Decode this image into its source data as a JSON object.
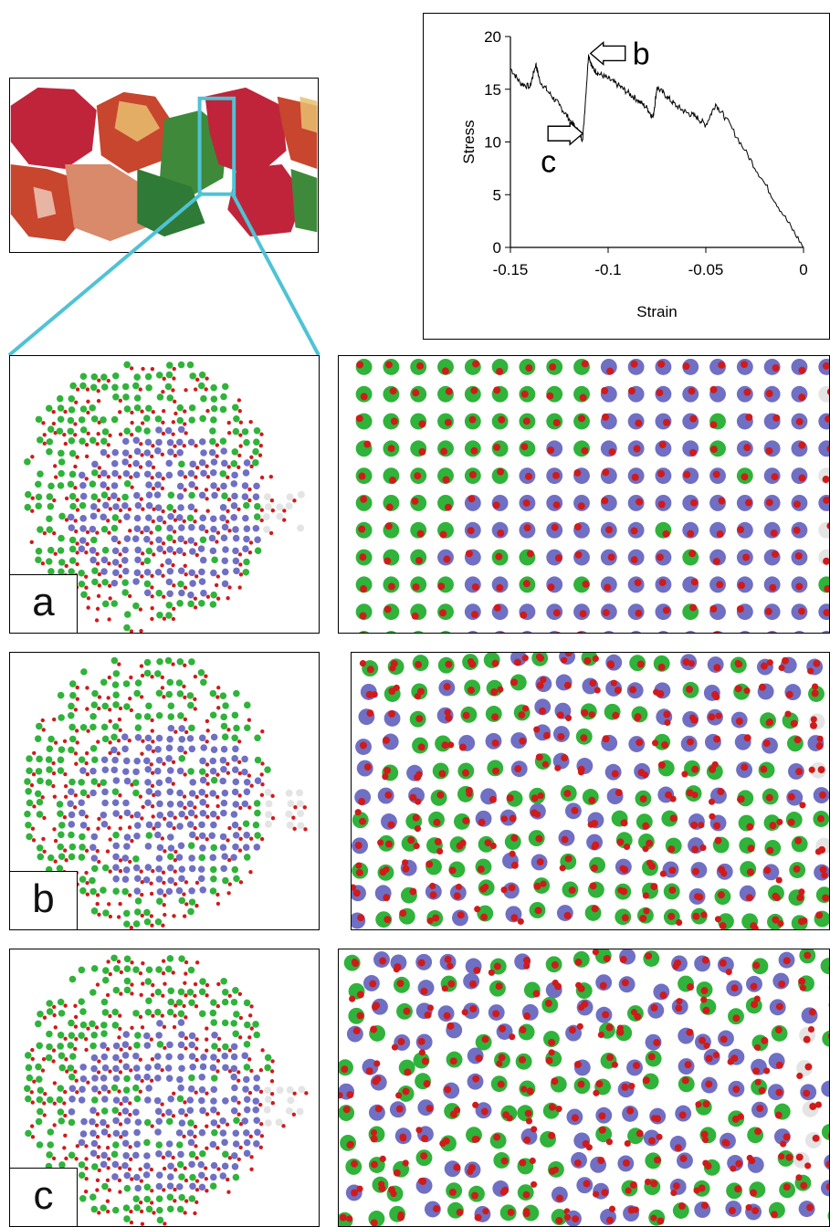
{
  "colors": {
    "green_atom": "#2fb33a",
    "blue_atom": "#6f6fc4",
    "red_atom": "#d11a1a",
    "white_atom": "#e4e4e4",
    "highlight": "#4ec3d6",
    "surface_red": "#c0243a",
    "surface_gold": "#e8c070"
  },
  "panels": {
    "a": {
      "label": "a"
    },
    "b": {
      "label": "b"
    },
    "c": {
      "label": "c"
    }
  },
  "chart_data": {
    "type": "line",
    "xlabel": "Strain",
    "ylabel": "Stress",
    "xlim": [
      -0.15,
      0
    ],
    "ylim": [
      0,
      20
    ],
    "xticks": [
      "-0.15",
      "-0.1",
      "-0.05",
      "0"
    ],
    "yticks": [
      "0",
      "5",
      "10",
      "15",
      "20"
    ],
    "series": [
      {
        "x": [
          -0.15,
          -0.145,
          -0.14,
          -0.137,
          -0.135,
          -0.13,
          -0.125,
          -0.12,
          -0.115,
          -0.113,
          -0.11,
          -0.108,
          -0.105,
          -0.1,
          -0.095,
          -0.09,
          -0.085,
          -0.08,
          -0.077,
          -0.075,
          -0.07,
          -0.065,
          -0.06,
          -0.055,
          -0.05,
          -0.045,
          -0.04,
          -0.03,
          -0.02,
          -0.01,
          0
        ],
        "y": [
          17,
          15.6,
          15.2,
          17.4,
          15.8,
          14.6,
          13.5,
          12.2,
          10.9,
          10.2,
          18.3,
          17.0,
          16.5,
          16.0,
          15.4,
          14.7,
          14.0,
          13.2,
          12.3,
          15.2,
          14.3,
          13.4,
          12.8,
          12.4,
          11.6,
          13.6,
          12.3,
          9.2,
          6.1,
          3.0,
          0
        ]
      }
    ],
    "annotations": [
      {
        "text": "b",
        "x": -0.101,
        "y": 18.0
      },
      {
        "text": "c",
        "x": -0.118,
        "y": 9.3
      }
    ],
    "grid": false
  }
}
